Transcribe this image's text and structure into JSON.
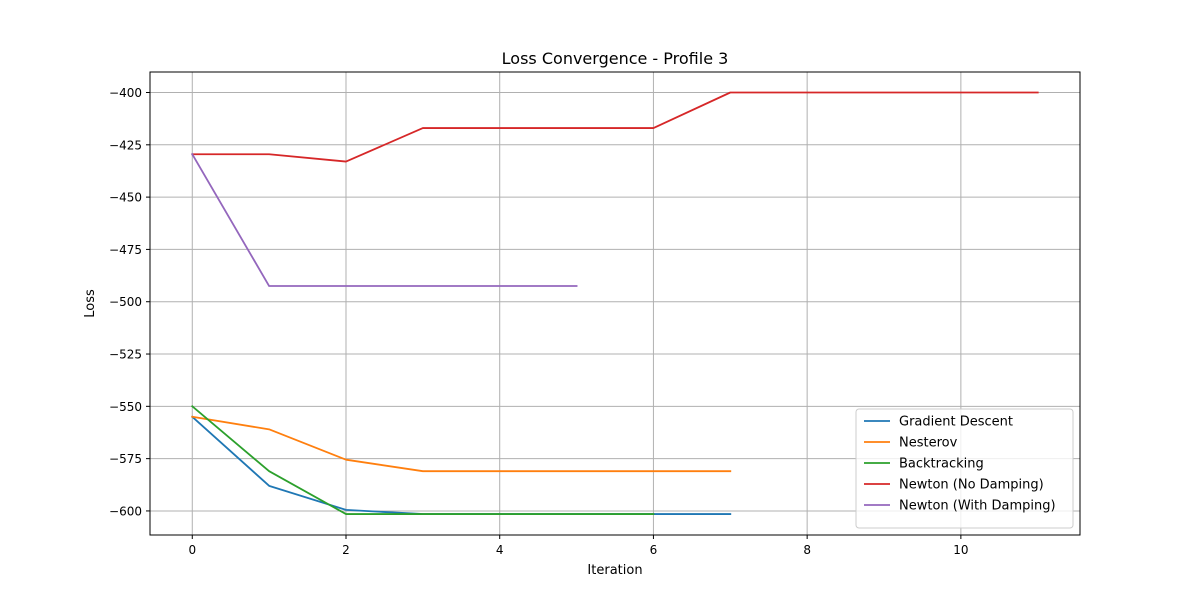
{
  "chart_data": {
    "type": "line",
    "title": "Loss Convergence - Profile 3",
    "xlabel": "Iteration",
    "ylabel": "Loss",
    "xlim": [
      -0.55,
      11.55
    ],
    "ylim": [
      -611.5,
      -390.2
    ],
    "xticks": [
      0,
      2,
      4,
      6,
      8,
      10
    ],
    "yticks": [
      -600,
      -575,
      -550,
      -525,
      -500,
      -475,
      -450,
      -425,
      -400
    ],
    "grid": true,
    "legend_position": "lower right",
    "series": [
      {
        "name": "Gradient Descent",
        "color": "#1f77b4",
        "x": [
          0,
          1,
          2,
          3,
          4,
          5,
          6,
          7
        ],
        "y": [
          -555,
          -588,
          -599.5,
          -601.5,
          -601.5,
          -601.5,
          -601.5,
          -601.5
        ]
      },
      {
        "name": "Nesterov",
        "color": "#ff7f0e",
        "x": [
          0,
          1,
          2,
          3,
          4,
          5,
          6,
          7
        ],
        "y": [
          -555,
          -561,
          -575.5,
          -581,
          -581,
          -581,
          -581,
          -581
        ]
      },
      {
        "name": "Backtracking",
        "color": "#2ca02c",
        "x": [
          0,
          1,
          2,
          3,
          4,
          5,
          6
        ],
        "y": [
          -550,
          -581,
          -601.5,
          -601.5,
          -601.5,
          -601.5,
          -601.5
        ]
      },
      {
        "name": "Newton (No Damping)",
        "color": "#d62728",
        "x": [
          0,
          1,
          2,
          3,
          4,
          5,
          6,
          7,
          8,
          9,
          10,
          11
        ],
        "y": [
          -429.5,
          -429.5,
          -433,
          -417,
          -417,
          -417,
          -417,
          -400,
          -400,
          -400,
          -400,
          -400
        ]
      },
      {
        "name": "Newton (With Damping)",
        "color": "#9467bd",
        "x": [
          0,
          1,
          2,
          3,
          4,
          5
        ],
        "y": [
          -429.5,
          -492.5,
          -492.5,
          -492.5,
          -492.5,
          -492.5
        ]
      }
    ]
  }
}
